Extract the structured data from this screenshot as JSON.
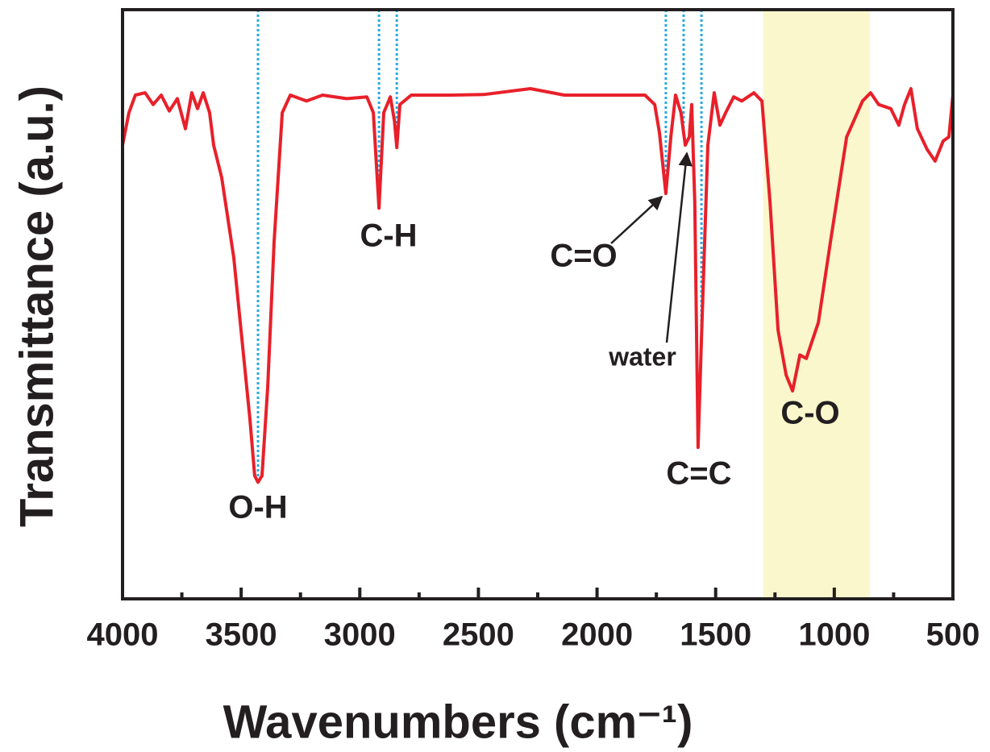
{
  "chart_data": {
    "type": "line",
    "xlabel": "Wavenumbers (cm⁻¹)",
    "ylabel": "Transmittance (a.u.)",
    "xlim": [
      4000,
      500
    ],
    "ylim": [
      0,
      100
    ],
    "xticks": [
      4000,
      3500,
      3000,
      2500,
      2000,
      1500,
      1000,
      500
    ],
    "xticks_minor": [
      3750,
      3250,
      2750,
      2250,
      1750,
      1250,
      750
    ],
    "highlight": {
      "range": [
        1300,
        850
      ],
      "color": "#faf7cd"
    },
    "reference_lines": {
      "x": [
        3429,
        2919,
        2844,
        1710,
        1635,
        1560
      ],
      "color": "#29a8e0"
    },
    "annotations": [
      "O-H",
      "C-H",
      "C=O",
      "water",
      "C=C",
      "C-O"
    ],
    "series": [
      {
        "color": "#e8202a",
        "x": [
          4000,
          3973,
          3946,
          3905,
          3871,
          3837,
          3803,
          3769,
          3735,
          3708,
          3684,
          3660,
          3633,
          3616,
          3582,
          3531,
          3497,
          3463,
          3443,
          3429,
          3412,
          3388,
          3361,
          3327,
          3293,
          3225,
          3157,
          3055,
          2970,
          2943,
          2919,
          2899,
          2871,
          2854,
          2844,
          2831,
          2783,
          2613,
          2478,
          2281,
          2138,
          1934,
          1798,
          1757,
          1737,
          1710,
          1689,
          1669,
          1646,
          1628,
          1611,
          1601,
          1588,
          1574,
          1560,
          1533,
          1506,
          1482,
          1458,
          1424,
          1390,
          1339,
          1305,
          1271,
          1237,
          1203,
          1176,
          1145,
          1118,
          1067,
          1016,
          948,
          881,
          847,
          813,
          762,
          728,
          704,
          677,
          650,
          609,
          575,
          541,
          517,
          500
        ],
        "values": [
          77.0,
          82.5,
          85.5,
          85.9,
          83.9,
          85.5,
          82.8,
          84.9,
          79.8,
          85.9,
          83.2,
          85.9,
          82.5,
          77.0,
          71.5,
          57.9,
          44.2,
          30.5,
          20.9,
          19.8,
          20.9,
          36.0,
          60.6,
          82.5,
          85.5,
          84.5,
          85.5,
          84.9,
          85.2,
          82.5,
          66.3,
          82.5,
          85.2,
          81.1,
          76.6,
          83.9,
          85.5,
          85.5,
          85.6,
          86.6,
          85.5,
          85.5,
          85.5,
          83.9,
          79.1,
          68.8,
          78.4,
          85.5,
          82.5,
          77.0,
          78.4,
          83.9,
          67.4,
          25.7,
          44.2,
          77.0,
          85.9,
          80.4,
          82.5,
          85.2,
          84.5,
          85.9,
          84.5,
          67.4,
          45.6,
          38.0,
          35.3,
          41.4,
          40.8,
          46.9,
          60.6,
          78.4,
          84.5,
          85.9,
          83.9,
          83.2,
          80.4,
          83.9,
          86.6,
          79.8,
          76.3,
          74.3,
          77.7,
          78.4,
          85.5
        ]
      }
    ]
  }
}
